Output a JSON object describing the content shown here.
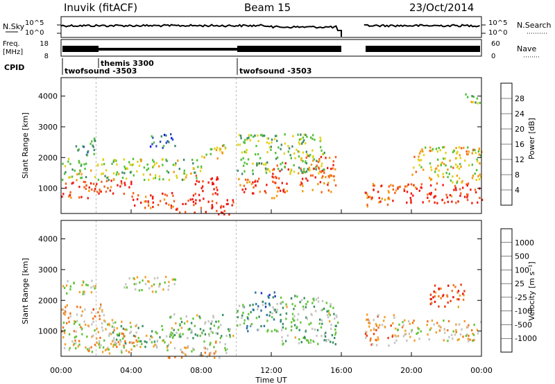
{
  "header": {
    "station": "Inuvik  (fitACF)",
    "beam": "Beam 15",
    "date": "23/Oct/2014"
  },
  "top_panel": {
    "left_label": "N.Sky",
    "right_label": "N.Search",
    "left_ticks": [
      "10^5",
      "10^0"
    ],
    "right_ticks": [
      "10^5",
      "10^0"
    ]
  },
  "freq_panel": {
    "left_label_top": "Freq.",
    "left_label_bottom": "[MHz]",
    "left_ticks": [
      "18",
      "8"
    ],
    "right_label": "Nave",
    "right_ticks": [
      "60",
      "0"
    ]
  },
  "cpid_panel": {
    "label": "CPID",
    "segments": [
      {
        "start": "00:00",
        "text": "twofsound -3503"
      },
      {
        "start": "02:00",
        "text": "themis 3300"
      },
      {
        "start": "10:00",
        "text": "twofsound -3503"
      }
    ]
  },
  "x_axis": {
    "label": "Time UT",
    "ticks": [
      "00:00",
      "04:00",
      "08:00",
      "12:00",
      "16:00",
      "20:00",
      "00:00"
    ]
  },
  "power_panel": {
    "ylabel": "Slant Range [km]",
    "yticks": [
      "1000",
      "2000",
      "3000",
      "4000"
    ],
    "colorbar_label": "Power [dB]",
    "colorbar_ticks": [
      "4",
      "8",
      "12",
      "16",
      "20",
      "24",
      "28"
    ],
    "colors": [
      "#0010f0",
      "#2a52b8",
      "#3f8a6a",
      "#52c03a",
      "#e2d21a",
      "#f39a12",
      "#f5601e",
      "#f01a12"
    ]
  },
  "velocity_panel": {
    "ylabel": "Slant Range [km]",
    "yticks": [
      "1000",
      "2000",
      "3000",
      "4000"
    ],
    "colorbar_label": "Velocity [m s⁻¹]",
    "colorbar_ticks": [
      "1000",
      "500",
      "100",
      "25",
      "-25",
      "-100",
      "-500",
      "-1000"
    ],
    "colors": [
      "#2336c2",
      "#2d73a6",
      "#3a8f62",
      "#63c53a",
      "#c4c4c0",
      "#f3a02a",
      "#f3761c",
      "#ec3c14",
      "#e8100e"
    ]
  },
  "chart_data": [
    {
      "type": "heatmap",
      "title": "Power",
      "x_range": [
        "00:00",
        "24:00"
      ],
      "y_range_km": [
        180,
        4600
      ],
      "colorbar": "Power [dB]",
      "clim": [
        0,
        30
      ],
      "gap_hours": [
        16.0,
        17.3
      ],
      "blobs": [
        {
          "t0": 0.0,
          "t1": 2.0,
          "r0": 700,
          "r1": 1300,
          "v": 26
        },
        {
          "t0": 2.0,
          "t1": 4.0,
          "r0": 850,
          "r1": 1350,
          "v": 27
        },
        {
          "t0": 4.0,
          "t1": 6.5,
          "r0": 350,
          "r1": 900,
          "v": 26
        },
        {
          "t0": 6.5,
          "t1": 9.8,
          "r0": 180,
          "r1": 700,
          "v": 28
        },
        {
          "t0": 7.5,
          "t1": 9.0,
          "r0": 800,
          "r1": 1500,
          "v": 28
        },
        {
          "t0": 10.0,
          "t1": 11.8,
          "r0": 850,
          "r1": 1400,
          "v": 27
        },
        {
          "t0": 12.0,
          "t1": 13.0,
          "r0": 700,
          "r1": 1900,
          "v": 25
        },
        {
          "t0": 13.5,
          "t1": 15.7,
          "r0": 900,
          "r1": 2100,
          "v": 24
        },
        {
          "t0": 17.3,
          "t1": 19.0,
          "r0": 400,
          "r1": 1200,
          "v": 24
        },
        {
          "t0": 19.0,
          "t1": 24.0,
          "r0": 550,
          "r1": 1200,
          "v": 27
        },
        {
          "t0": 0.0,
          "t1": 8.0,
          "r0": 1300,
          "r1": 2000,
          "v": 15
        },
        {
          "t0": 0.8,
          "t1": 2.0,
          "r0": 2100,
          "r1": 2700,
          "v": 10
        },
        {
          "t0": 5.0,
          "t1": 6.5,
          "r0": 2300,
          "r1": 2800,
          "v": 8
        },
        {
          "t0": 8.0,
          "t1": 9.5,
          "r0": 2000,
          "r1": 2500,
          "v": 18
        },
        {
          "t0": 10.0,
          "t1": 15.0,
          "r0": 1500,
          "r1": 2800,
          "v": 13
        },
        {
          "t0": 20.0,
          "t1": 24.0,
          "r0": 1200,
          "r1": 2400,
          "v": 18
        },
        {
          "t0": 23.0,
          "t1": 24.0,
          "r0": 3800,
          "r1": 4200,
          "v": 14
        }
      ]
    },
    {
      "type": "heatmap",
      "title": "Velocity",
      "x_range": [
        "00:00",
        "24:00"
      ],
      "y_range_km": [
        180,
        4600
      ],
      "colorbar": "Velocity [m s-1]",
      "clim": [
        -1000,
        1000
      ],
      "gap_hours": [
        16.0,
        17.3
      ],
      "blobs": [
        {
          "t0": 0.0,
          "t1": 4.5,
          "r0": 300,
          "r1": 1400,
          "v": -100
        },
        {
          "t0": 0.0,
          "t1": 2.5,
          "r0": 1400,
          "r1": 1900,
          "v": -300
        },
        {
          "t0": 2.5,
          "t1": 6.5,
          "r0": 500,
          "r1": 1200,
          "v": 150
        },
        {
          "t0": 3.5,
          "t1": 6.5,
          "r0": 2300,
          "r1": 2800,
          "v": 0
        },
        {
          "t0": 6.0,
          "t1": 9.8,
          "r0": 800,
          "r1": 1600,
          "v": 200
        },
        {
          "t0": 6.0,
          "t1": 9.5,
          "r0": 150,
          "r1": 700,
          "v": -120
        },
        {
          "t0": 10.0,
          "t1": 12.5,
          "r0": 1000,
          "r1": 2000,
          "v": 300
        },
        {
          "t0": 11.0,
          "t1": 12.2,
          "r0": 1800,
          "r1": 2300,
          "v": 800
        },
        {
          "t0": 12.5,
          "t1": 15.8,
          "r0": 600,
          "r1": 2200,
          "v": 200
        },
        {
          "t0": 17.3,
          "t1": 19.0,
          "r0": 500,
          "r1": 1600,
          "v": -300
        },
        {
          "t0": 19.0,
          "t1": 24.0,
          "r0": 700,
          "r1": 1400,
          "v": -150
        },
        {
          "t0": 21.0,
          "t1": 23.0,
          "r0": 1800,
          "r1": 2600,
          "v": -600
        },
        {
          "t0": 0.0,
          "t1": 2.0,
          "r0": 2200,
          "r1": 2700,
          "v": 0
        }
      ]
    }
  ]
}
